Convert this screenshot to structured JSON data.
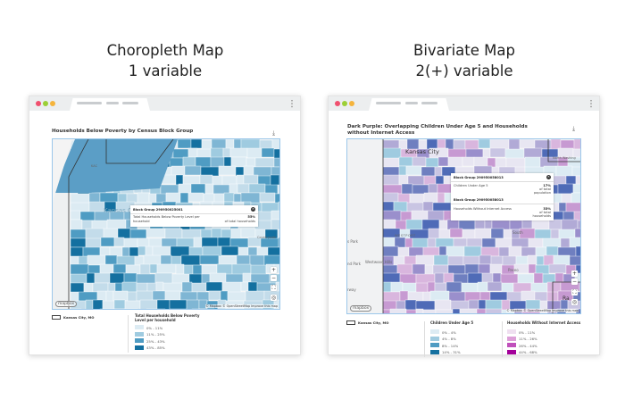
{
  "left": {
    "heading_line1": "Choropleth Map",
    "heading_line2": "1 variable",
    "map_title": "Households Below Poverty by Census Block Group",
    "download_icon": "download-icon",
    "place_labels": [
      "Kansas C",
      "KAC",
      "Countryside"
    ],
    "popup": {
      "block_group": "Block Group 290950025001",
      "metric": "Total Households Below Poverty Level per household",
      "value": "55%",
      "unit": "of total households"
    },
    "attribution": "© Mapbox © OpenStreetMap Improve this map",
    "logo": "mapbox",
    "boundary_label": "Kansas City, MO",
    "legend": {
      "title": "Total Households Below Poverty Level per household",
      "items": [
        {
          "label": "0% - 11%",
          "color": "#dcebf3"
        },
        {
          "label": "11% - 25%",
          "color": "#9fcbe0"
        },
        {
          "label": "25% - 43%",
          "color": "#4f9cc3"
        },
        {
          "label": "43% - 85%",
          "color": "#1470a0"
        }
      ]
    }
  },
  "right": {
    "heading_line1": "Bivariate Map",
    "heading_line2": "2(+) variable",
    "map_title": "Dark Purple: Overlapping Children Under Age 5 and Households without Internet Access",
    "download_icon": "download-icon",
    "place_labels": [
      "Kansas City",
      "WESTPORT",
      "Westwood Hills",
      "nd Park",
      "s Park",
      "rway",
      "Paseo",
      "South",
      "North Washing",
      "Ra"
    ],
    "popup": {
      "block_group_1": "Block Group 290950058013",
      "metric_1": "Children Under Age 5",
      "value_1": "17%",
      "unit_1": "of total population",
      "block_group_2": "Block Group 290950058013",
      "metric_2": "Households Without Internet Access",
      "value_2": "33%",
      "unit_2": "of total households"
    },
    "attribution": "© Mapbox © OpenStreetMap Improve this map",
    "logo": "mapbox",
    "boundary_label": "Kansas City, MO",
    "legend_a": {
      "title": "Children Under Age 5",
      "items": [
        {
          "label": "0% - 4%",
          "color": "#dcebf3"
        },
        {
          "label": "4% - 8%",
          "color": "#9fcbe0"
        },
        {
          "label": "8% - 14%",
          "color": "#4f9cc3"
        },
        {
          "label": "14% - 31%",
          "color": "#1470a0"
        }
      ]
    },
    "legend_b": {
      "title": "Households Without Internet Access",
      "items": [
        {
          "label": "0% - 11%",
          "color": "#efdff0"
        },
        {
          "label": "11% - 26%",
          "color": "#dd9fd8"
        },
        {
          "label": "26% - 44%",
          "color": "#c04fbb"
        },
        {
          "label": "44% - 68%",
          "color": "#a3009a"
        }
      ]
    }
  },
  "controls": {
    "zoom_in": "+",
    "zoom_out": "−",
    "fullscreen": "⛶",
    "locate": "◎"
  }
}
